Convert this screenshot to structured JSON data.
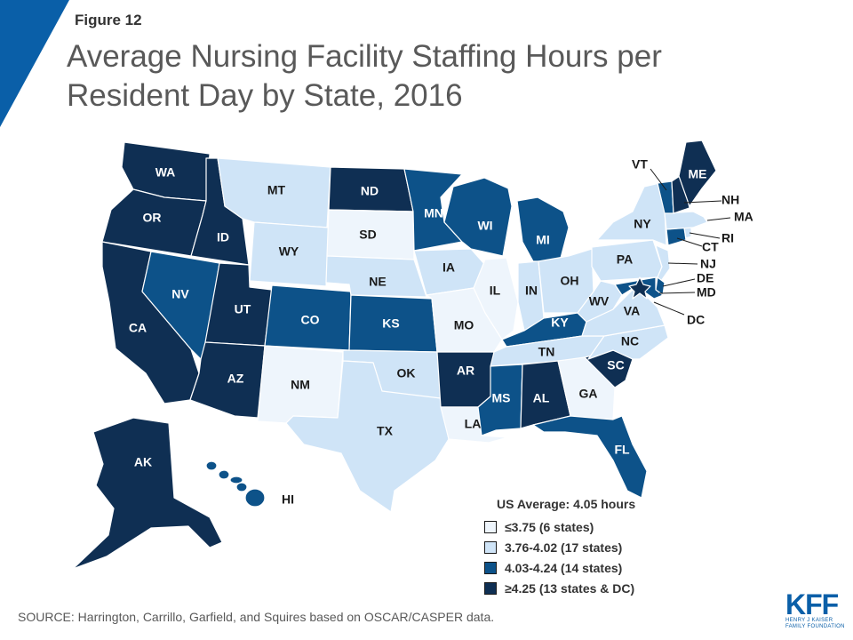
{
  "figure_label": "Figure 12",
  "title": "Average Nursing Facility Staffing Hours per Resident Day by State, 2016",
  "colors": {
    "corner": "#0a5fa8",
    "c1": "#eef5fc",
    "c2": "#cfe4f7",
    "c3": "#0d5289",
    "c4": "#0f2f53",
    "label_light": "#1a1a1a",
    "label_dark": "#ffffff"
  },
  "legend": {
    "title": "US Average: 4.05 hours",
    "items": [
      {
        "label": "≤3.75 (6 states)",
        "color": "#eef5fc"
      },
      {
        "label": "3.76-4.02 (17 states)",
        "color": "#cfe4f7"
      },
      {
        "label": "4.03-4.24 (14 states)",
        "color": "#0d5289"
      },
      {
        "label": "≥4.25 (13 states & DC)",
        "color": "#0f2f53"
      }
    ]
  },
  "states": [
    {
      "code": "WA",
      "cat": 4
    },
    {
      "code": "OR",
      "cat": 4
    },
    {
      "code": "CA",
      "cat": 4
    },
    {
      "code": "ID",
      "cat": 4
    },
    {
      "code": "NV",
      "cat": 3
    },
    {
      "code": "UT",
      "cat": 4
    },
    {
      "code": "AZ",
      "cat": 4
    },
    {
      "code": "MT",
      "cat": 2
    },
    {
      "code": "WY",
      "cat": 2
    },
    {
      "code": "CO",
      "cat": 3
    },
    {
      "code": "NM",
      "cat": 1
    },
    {
      "code": "ND",
      "cat": 4
    },
    {
      "code": "SD",
      "cat": 1
    },
    {
      "code": "NE",
      "cat": 2
    },
    {
      "code": "KS",
      "cat": 3
    },
    {
      "code": "OK",
      "cat": 2
    },
    {
      "code": "TX",
      "cat": 2
    },
    {
      "code": "MN",
      "cat": 3
    },
    {
      "code": "IA",
      "cat": 2
    },
    {
      "code": "MO",
      "cat": 1
    },
    {
      "code": "AR",
      "cat": 4
    },
    {
      "code": "LA",
      "cat": 1
    },
    {
      "code": "WI",
      "cat": 3
    },
    {
      "code": "IL",
      "cat": 1
    },
    {
      "code": "MI",
      "cat": 3
    },
    {
      "code": "IN",
      "cat": 2
    },
    {
      "code": "OH",
      "cat": 2
    },
    {
      "code": "KY",
      "cat": 3
    },
    {
      "code": "TN",
      "cat": 2
    },
    {
      "code": "MS",
      "cat": 3
    },
    {
      "code": "AL",
      "cat": 4
    },
    {
      "code": "GA",
      "cat": 1
    },
    {
      "code": "FL",
      "cat": 3
    },
    {
      "code": "SC",
      "cat": 4
    },
    {
      "code": "NC",
      "cat": 2
    },
    {
      "code": "VA",
      "cat": 2
    },
    {
      "code": "WV",
      "cat": 2
    },
    {
      "code": "PA",
      "cat": 2
    },
    {
      "code": "NY",
      "cat": 2
    },
    {
      "code": "NJ",
      "cat": 2
    },
    {
      "code": "DE",
      "cat": 3
    },
    {
      "code": "MD",
      "cat": 3
    },
    {
      "code": "DC",
      "cat": 4
    },
    {
      "code": "CT",
      "cat": 3
    },
    {
      "code": "RI",
      "cat": 2
    },
    {
      "code": "MA",
      "cat": 2
    },
    {
      "code": "VT",
      "cat": 3
    },
    {
      "code": "NH",
      "cat": 4
    },
    {
      "code": "ME",
      "cat": 4
    },
    {
      "code": "AK",
      "cat": 4
    },
    {
      "code": "HI",
      "cat": 3
    }
  ],
  "source": "SOURCE: Harrington,  Carrillo, Garfield, and Squires based on OSCAR/CASPER data.",
  "logo": {
    "text": "KFF",
    "sub1": "HENRY J KAISER",
    "sub2": "FAMILY FOUNDATION"
  }
}
